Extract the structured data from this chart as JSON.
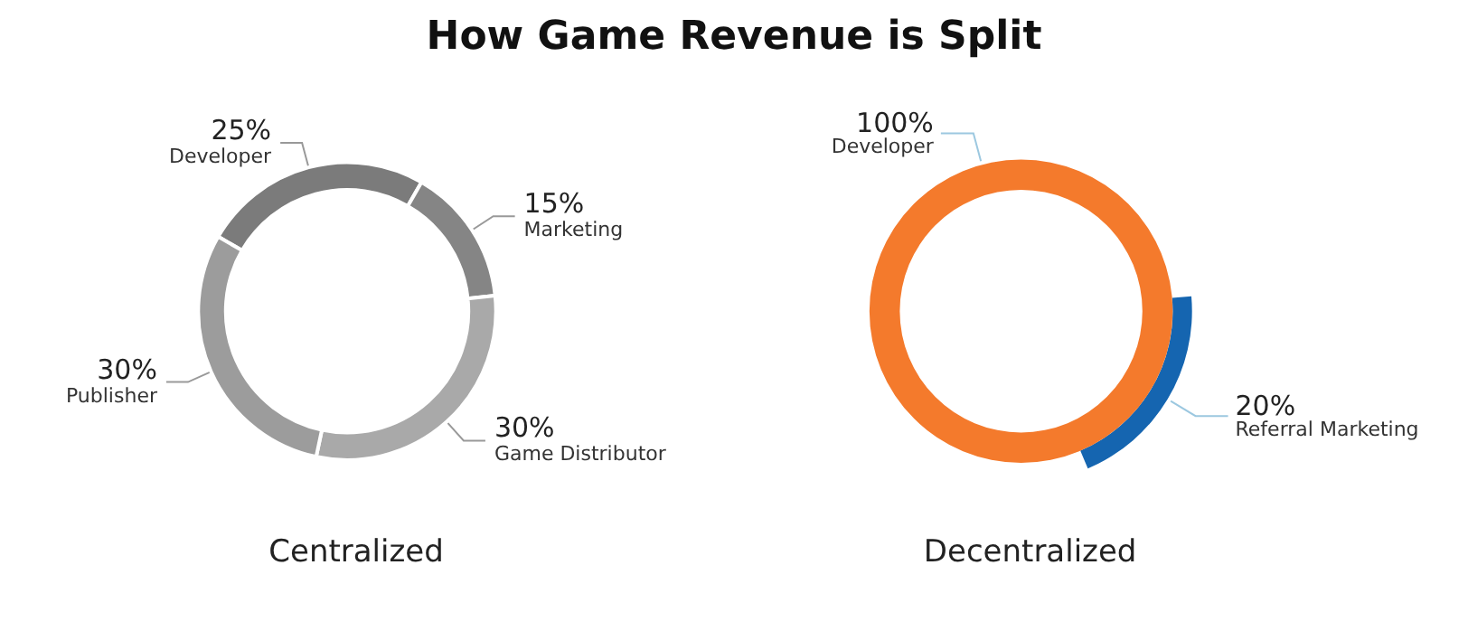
{
  "chart_data": [
    {
      "type": "donut",
      "title": "How Game Revenue is Split",
      "xlabel": "Centralized",
      "categories": [
        "Developer",
        "Marketing",
        "Game Distributor",
        "Publisher"
      ],
      "values": [
        25,
        15,
        30,
        30
      ],
      "colors": [
        "#7b7b7b",
        "#858585",
        "#a9a9a9",
        "#9c9c9c"
      ],
      "value_labels": [
        "25%",
        "15%",
        "30%",
        "30%"
      ]
    },
    {
      "type": "donut",
      "xlabel": "Decentralized",
      "series": [
        {
          "name": "Referral Marketing",
          "color": "#1565b0",
          "values": [
            20
          ],
          "value_labels": [
            "20%"
          ]
        },
        {
          "name": "Developer",
          "color": "#f47a2c",
          "values": [
            100
          ],
          "value_labels": [
            "100%"
          ]
        }
      ]
    }
  ]
}
